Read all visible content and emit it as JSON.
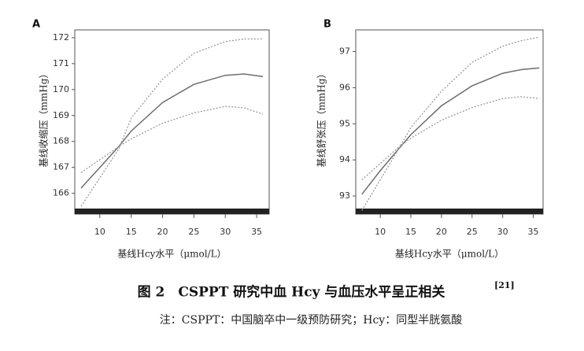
{
  "chart_data": [
    {
      "type": "line",
      "panel_label": "A",
      "ylabel": "基线收缩压（mmHg）",
      "xlabel": "基线Hcy水平（μmol/L）",
      "x": [
        7,
        10,
        13,
        15,
        20,
        25,
        30,
        33,
        36
      ],
      "series": [
        {
          "color": "#6e6e6e",
          "line_style": "solid",
          "values": [
            166.2,
            167.0,
            167.8,
            168.4,
            169.5,
            170.2,
            170.55,
            170.6,
            170.5
          ]
        },
        {
          "color": "#9a9a9a",
          "line_style": "dotted",
          "values": [
            165.5,
            166.6,
            167.7,
            168.9,
            170.4,
            171.4,
            171.85,
            171.95,
            171.95
          ]
        },
        {
          "color": "#9a9a9a",
          "line_style": "dotted",
          "values": [
            166.8,
            167.3,
            167.8,
            168.1,
            168.7,
            169.1,
            169.35,
            169.3,
            169.05
          ]
        }
      ],
      "xlim": [
        6,
        37
      ],
      "ylim": [
        165.2,
        172.3
      ],
      "xticks": [
        10,
        15,
        20,
        25,
        30,
        35
      ],
      "yticks": [
        166,
        167,
        168,
        169,
        170,
        171,
        172
      ]
    },
    {
      "type": "line",
      "panel_label": "B",
      "ylabel": "基线舒张压（mmHg）",
      "xlabel": "基线Hcy水平（μmol/L）",
      "x": [
        7,
        10,
        13,
        15,
        20,
        25,
        30,
        33,
        36
      ],
      "series": [
        {
          "color": "#6e6e6e",
          "line_style": "solid",
          "values": [
            93.05,
            93.7,
            94.3,
            94.7,
            95.5,
            96.05,
            96.4,
            96.5,
            96.55
          ]
        },
        {
          "color": "#9a9a9a",
          "line_style": "dotted",
          "values": [
            92.6,
            93.45,
            94.3,
            94.9,
            95.9,
            96.7,
            97.15,
            97.3,
            97.4
          ]
        },
        {
          "color": "#9a9a9a",
          "line_style": "dotted",
          "values": [
            93.45,
            93.9,
            94.35,
            94.6,
            95.1,
            95.45,
            95.7,
            95.75,
            95.7
          ]
        }
      ],
      "xlim": [
        6,
        36.6
      ],
      "ylim": [
        92.5,
        97.6
      ],
      "xticks": [
        10,
        15,
        20,
        25,
        30,
        35
      ],
      "yticks": [
        93,
        94,
        95,
        96,
        97
      ]
    }
  ],
  "figure": {
    "caption": "图 2　CSPPT 研究中血 Hcy 与血压水平呈正相关",
    "caption_ref": "[21]",
    "note": "注：CSPPT：中国脑卒中一级预防研究；Hcy：同型半胱氨酸"
  }
}
